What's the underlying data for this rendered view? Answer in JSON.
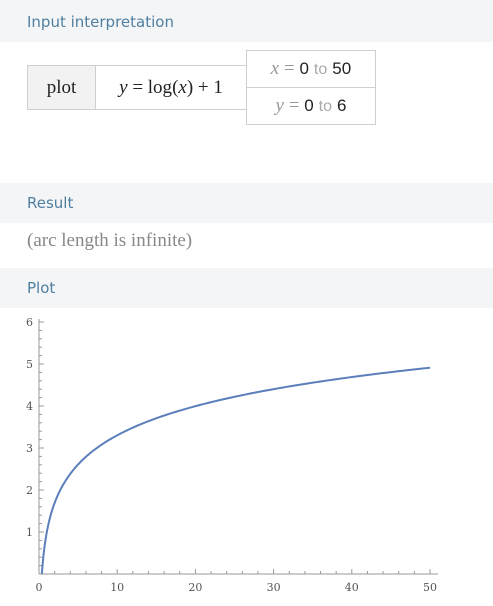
{
  "input_interpretation": {
    "header": "Input interpretation",
    "command": "plot",
    "function": {
      "lhs": "y",
      "eq": "=",
      "rhs_fn": "log",
      "arg": "x",
      "rhs_tail": "+ 1"
    },
    "x_range": {
      "var": "x",
      "eq": "=",
      "from": "0",
      "to_word": "to",
      "to": "50"
    },
    "y_range": {
      "var": "y",
      "eq": "=",
      "from": "0",
      "to_word": "to",
      "to": "6"
    }
  },
  "result": {
    "header": "Result",
    "text": "(arc length is infinite)"
  },
  "plot": {
    "header": "Plot"
  },
  "chart_data": {
    "type": "line",
    "title": "",
    "xlabel": "",
    "ylabel": "",
    "function": "y = log(x) + 1",
    "xlim": [
      0,
      50
    ],
    "ylim": [
      0,
      6
    ],
    "x_ticks": [
      0,
      10,
      20,
      30,
      40,
      50
    ],
    "y_ticks": [
      1,
      2,
      3,
      4,
      5,
      6
    ],
    "grid": false,
    "series": [
      {
        "color": "#5b7fba",
        "x": [
          0.37,
          0.5,
          1,
          2,
          3,
          5,
          7.5,
          10,
          15,
          20,
          25,
          30,
          35,
          40,
          45,
          50
        ],
        "y": [
          0.0,
          0.31,
          1.0,
          1.69,
          2.1,
          2.61,
          3.01,
          3.3,
          3.71,
          4.0,
          4.22,
          4.4,
          4.56,
          4.69,
          4.81,
          4.91
        ]
      }
    ]
  }
}
